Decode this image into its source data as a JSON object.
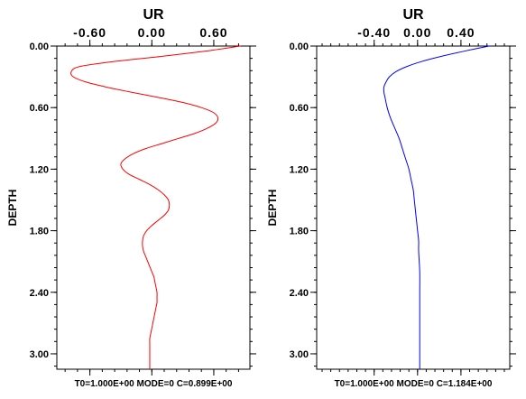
{
  "chart_data": [
    {
      "type": "line",
      "title": "UR",
      "ylabel": "DEPTH",
      "caption": "T0=1.000E+00 MODE=0 C=0.899E+00",
      "x_ticks": [
        "-0.60",
        "0.00",
        "0.60"
      ],
      "x_tick_values": [
        -0.6,
        0.0,
        0.6
      ],
      "y_ticks": [
        "0.00",
        "0.60",
        "1.20",
        "1.80",
        "2.40",
        "3.00"
      ],
      "y_tick_values": [
        0.0,
        0.6,
        1.2,
        1.8,
        2.4,
        3.0
      ],
      "xlim": [
        -0.92,
        0.95
      ],
      "ylim": [
        0.0,
        3.15
      ],
      "y_inverted": true,
      "color": "#ff0000",
      "series": [
        {
          "depth": [
            0.0,
            0.05,
            0.1,
            0.15,
            0.2,
            0.25,
            0.3,
            0.35,
            0.4,
            0.45,
            0.5,
            0.55,
            0.6,
            0.65,
            0.7,
            0.75,
            0.8,
            0.85,
            0.9,
            0.95,
            1.0,
            1.05,
            1.1,
            1.15,
            1.2,
            1.25,
            1.3,
            1.35,
            1.4,
            1.45,
            1.5,
            1.55,
            1.6,
            1.65,
            1.7,
            1.75,
            1.8,
            1.85,
            1.9,
            1.95,
            2.0,
            2.05,
            2.1,
            2.15,
            2.2,
            2.25,
            2.3,
            2.35,
            2.4,
            2.45,
            2.5,
            2.55,
            2.6,
            2.65,
            2.7,
            2.75,
            2.8,
            2.85,
            2.9,
            2.95,
            3.0,
            3.05,
            3.1,
            3.15
          ],
          "ur": [
            0.86,
            0.52,
            0.1,
            -0.36,
            -0.7,
            -0.78,
            -0.76,
            -0.64,
            -0.44,
            -0.2,
            0.06,
            0.3,
            0.48,
            0.6,
            0.64,
            0.62,
            0.54,
            0.42,
            0.26,
            0.1,
            -0.06,
            -0.18,
            -0.26,
            -0.3,
            -0.28,
            -0.22,
            -0.12,
            -0.02,
            0.06,
            0.12,
            0.16,
            0.17,
            0.16,
            0.12,
            0.06,
            0.0,
            -0.05,
            -0.08,
            -0.09,
            -0.09,
            -0.08,
            -0.06,
            -0.04,
            -0.02,
            0.0,
            0.02,
            0.03,
            0.04,
            0.05,
            0.05,
            0.05,
            0.04,
            0.03,
            0.02,
            0.01,
            0.0,
            -0.01,
            -0.02,
            -0.02,
            -0.02,
            -0.02,
            -0.02,
            -0.02,
            -0.02
          ]
        }
      ]
    },
    {
      "type": "line",
      "title": "UR",
      "ylabel": "DEPTH",
      "caption": "T0=1.000E+00 MODE=0 C=1.184E+00",
      "x_ticks": [
        "-0.40",
        "0.00",
        "0.40"
      ],
      "x_tick_values": [
        -0.4,
        0.0,
        0.4
      ],
      "y_ticks": [
        "0.00",
        "0.60",
        "1.20",
        "1.80",
        "2.40",
        "3.00"
      ],
      "y_tick_values": [
        0.0,
        0.6,
        1.2,
        1.8,
        2.4,
        3.0
      ],
      "xlim": [
        -0.93,
        0.85
      ],
      "ylim": [
        0.0,
        3.15
      ],
      "y_inverted": true,
      "color": "#0000ff",
      "series": [
        {
          "depth": [
            0.0,
            0.05,
            0.1,
            0.15,
            0.2,
            0.25,
            0.3,
            0.35,
            0.4,
            0.45,
            0.5,
            0.6,
            0.7,
            0.8,
            0.9,
            1.0,
            1.1,
            1.2,
            1.3,
            1.4,
            1.5,
            1.6,
            1.7,
            1.8,
            1.9,
            2.0,
            2.2,
            2.4,
            2.6,
            2.8,
            3.0,
            3.15
          ],
          "ur": [
            0.66,
            0.43,
            0.22,
            0.04,
            -0.1,
            -0.2,
            -0.26,
            -0.29,
            -0.31,
            -0.31,
            -0.3,
            -0.28,
            -0.25,
            -0.21,
            -0.17,
            -0.14,
            -0.11,
            -0.08,
            -0.06,
            -0.04,
            -0.03,
            -0.02,
            -0.01,
            0.0,
            0.01,
            0.01,
            0.02,
            0.02,
            0.02,
            0.02,
            0.02,
            0.02
          ]
        }
      ]
    }
  ]
}
